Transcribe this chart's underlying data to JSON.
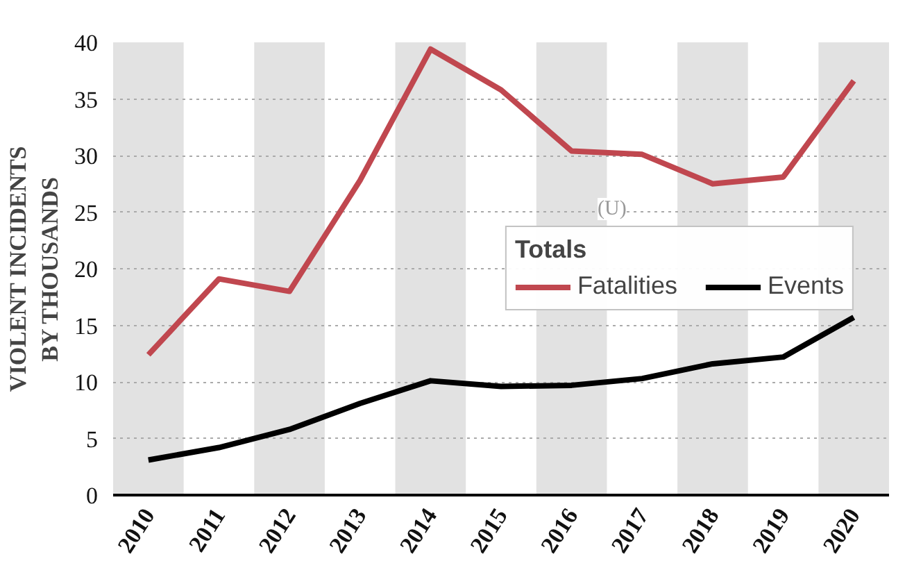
{
  "chart_data": {
    "type": "line",
    "ylabel": "VIOLENT INCIDENTS\nBY THOUSANDS",
    "legend_title": "Totals",
    "x": [
      2010,
      2011,
      2012,
      2013,
      2014,
      2015,
      2016,
      2017,
      2018,
      2019,
      2020
    ],
    "xlim": [
      2009.5,
      2020.5
    ],
    "xticks": [
      2010,
      2011,
      2012,
      2013,
      2014,
      2015,
      2016,
      2017,
      2018,
      2019,
      2020
    ],
    "ylim": [
      0,
      40
    ],
    "yticks": [
      0,
      5,
      10,
      15,
      20,
      25,
      30,
      35,
      40
    ],
    "series": [
      {
        "name": "Fatalities",
        "color": "#c0474f",
        "values": [
          12.4,
          19.1,
          18.0,
          27.8,
          39.4,
          35.8,
          30.4,
          30.1,
          27.5,
          28.1,
          36.6
        ]
      },
      {
        "name": "Events",
        "color": "#000000",
        "values": [
          3.1,
          4.2,
          5.8,
          8.1,
          10.1,
          9.6,
          9.7,
          10.3,
          11.6,
          12.2,
          15.7
        ]
      }
    ],
    "bands": [
      {
        "axis": "x",
        "from": 2009.5,
        "to": 2010.5,
        "color": "#e2e2e2"
      },
      {
        "axis": "x",
        "from": 2011.5,
        "to": 2012.5,
        "color": "#e2e2e2"
      },
      {
        "axis": "x",
        "from": 2013.5,
        "to": 2014.5,
        "color": "#e2e2e2"
      },
      {
        "axis": "x",
        "from": 2015.5,
        "to": 2016.5,
        "color": "#e2e2e2"
      },
      {
        "axis": "x",
        "from": 2017.5,
        "to": 2018.5,
        "color": "#e2e2e2"
      },
      {
        "axis": "x",
        "from": 2019.5,
        "to": 2020.5,
        "color": "#e2e2e2"
      }
    ],
    "annotations": [
      "(U)"
    ],
    "grid": "y",
    "legend": "right",
    "line_style": "solid"
  }
}
